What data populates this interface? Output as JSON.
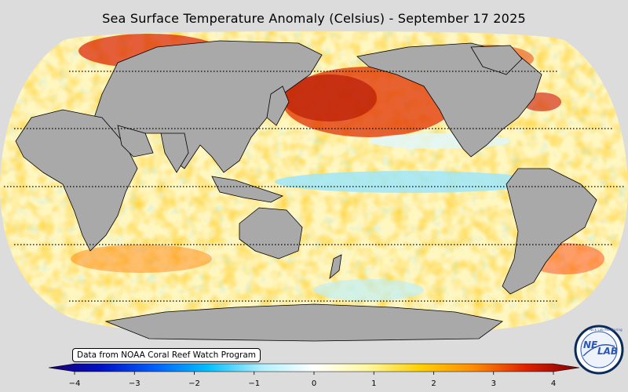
{
  "title": "Sea Surface Temperature Anomaly (Celsius) - September 17 2025",
  "credit": "Data from NOAA Coral Reef Watch Program",
  "colorbar": {
    "min": -4,
    "max": 4,
    "ticks": [
      "−4",
      "−3",
      "−2",
      "−1",
      "0",
      "1",
      "2",
      "3",
      "4"
    ],
    "stops": [
      "#1a0070",
      "#0010c8",
      "#0060ff",
      "#00c0ff",
      "#b0f0ff",
      "#ffffff",
      "#fff8a0",
      "#ffd000",
      "#ff8c00",
      "#e02000",
      "#800000"
    ]
  },
  "colors": {
    "land": "#a9a9a9",
    "background": "#dcdcdc",
    "ocean_base": "#fff3b0"
  },
  "logo": {
    "text_left": "NE",
    "text_right": "LAB",
    "ring_text": "Nick Lab Monitoring"
  },
  "map_features": {
    "projection": "robinson",
    "central_longitude": 160,
    "graticule_latitudes": [
      60,
      30,
      0,
      -30,
      -60
    ]
  }
}
